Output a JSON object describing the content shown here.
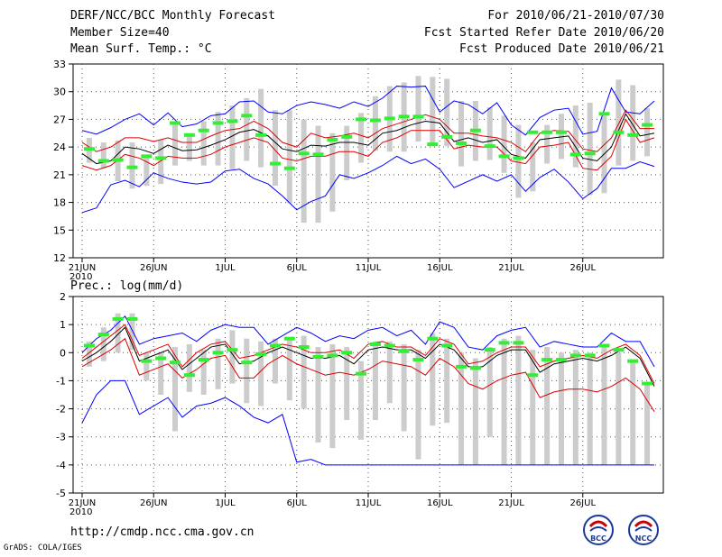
{
  "header": {
    "title": "DERF/NCC/BCC Monthly Forecast",
    "member_size": "Member Size=40",
    "forecast_range": "For 2010/06/21-2010/07/30",
    "started_date": "Fcst Started Refer Date 2010/06/20",
    "produced_date": "Fcst Produced Date 2010/06/21"
  },
  "footer": {
    "url": "http://cmdp.ncc.cma.gov.cn",
    "credit": "GrADS: COLA/IGES",
    "logo1": "BCC",
    "logo2": "NCC"
  },
  "colors": {
    "max": "#0000ff",
    "pct": "#dd0000",
    "mean": "#000000",
    "obs": "#33ee33",
    "box": "#cccccc"
  },
  "chart_data": [
    {
      "type": "line",
      "label": "Mean Surf. Temp.: °C",
      "x_days": 40,
      "ylim": [
        12,
        33
      ],
      "yticks": [
        12,
        15,
        18,
        21,
        24,
        27,
        30,
        33
      ],
      "xticks": [
        {
          "day": 1,
          "label": "21JUN"
        },
        {
          "day": 6,
          "label": "26JUN"
        },
        {
          "day": 11,
          "label": "1JUL"
        },
        {
          "day": 16,
          "label": "6JUL"
        },
        {
          "day": 21,
          "label": "11JUL"
        },
        {
          "day": 26,
          "label": "16JUL"
        },
        {
          "day": 31,
          "label": "21JUL"
        },
        {
          "day": 36,
          "label": "26JUL"
        }
      ],
      "year_label": "2010",
      "series": [
        {
          "name": "max",
          "values": [
            25.8,
            25.4,
            26.1,
            27.0,
            27.6,
            26.4,
            27.7,
            26.2,
            26.5,
            27.4,
            27.6,
            28.9,
            29.0,
            27.8,
            27.6,
            28.5,
            28.9,
            28.6,
            28.2,
            28.9,
            28.4,
            29.3,
            30.6,
            30.5,
            30.6,
            27.8,
            29.0,
            28.6,
            27.6,
            28.8,
            26.4,
            25.3,
            27.2,
            28.0,
            28.2,
            25.4,
            25.7,
            30.4,
            27.8,
            27.6,
            29.0
          ]
        },
        {
          "name": "p90",
          "values": [
            24.5,
            23.5,
            24.0,
            25.0,
            25.0,
            24.6,
            25.0,
            24.5,
            24.5,
            25.2,
            25.8,
            26.0,
            26.8,
            26.0,
            24.5,
            24.0,
            25.5,
            25.0,
            25.2,
            25.5,
            25.0,
            26.0,
            26.5,
            27.0,
            27.5,
            27.0,
            25.5,
            25.5,
            25.2,
            25.0,
            24.5,
            23.5,
            25.5,
            25.8,
            25.7,
            23.8,
            23.5,
            25.0,
            28.0,
            26.0,
            26.0
          ]
        },
        {
          "name": "mean",
          "values": [
            23.3,
            22.2,
            22.5,
            24.0,
            23.8,
            23.3,
            24.2,
            23.6,
            23.7,
            24.2,
            24.8,
            25.6,
            25.9,
            25.2,
            23.8,
            23.5,
            24.2,
            24.1,
            24.5,
            24.5,
            24.2,
            25.5,
            25.8,
            26.4,
            26.8,
            26.6,
            24.6,
            25.0,
            24.5,
            24.8,
            23.2,
            22.8,
            24.8,
            25.0,
            25.2,
            22.8,
            22.5,
            24.0,
            27.6,
            25.2,
            25.5
          ]
        },
        {
          "name": "p10",
          "values": [
            22.0,
            21.5,
            22.0,
            23.2,
            22.8,
            22.0,
            23.0,
            22.8,
            22.8,
            23.2,
            24.0,
            24.5,
            25.0,
            24.5,
            22.8,
            22.5,
            23.0,
            23.0,
            23.5,
            23.5,
            23.0,
            24.5,
            25.0,
            25.8,
            25.8,
            25.8,
            23.8,
            24.2,
            24.0,
            24.0,
            22.5,
            22.2,
            24.0,
            24.2,
            24.5,
            21.7,
            21.5,
            23.0,
            27.0,
            24.5,
            25.0
          ]
        },
        {
          "name": "min",
          "values": [
            16.9,
            17.4,
            19.9,
            20.4,
            19.7,
            21.2,
            20.6,
            20.2,
            20.0,
            20.2,
            21.4,
            21.6,
            20.6,
            20.0,
            18.7,
            17.2,
            18.1,
            18.7,
            21.0,
            20.6,
            21.2,
            22.0,
            23.0,
            22.2,
            22.7,
            21.6,
            19.6,
            20.3,
            21.0,
            20.3,
            21.0,
            19.2,
            20.7,
            21.6,
            20.2,
            18.4,
            19.5,
            21.7,
            21.7,
            22.4,
            21.9
          ]
        }
      ],
      "obs": [
        23.8,
        22.5,
        22.6,
        21.8,
        23.0,
        22.8,
        26.6,
        25.3,
        25.8,
        26.6,
        26.8,
        27.4,
        25.3,
        22.2,
        21.7,
        23.3,
        23.2,
        24.8,
        25.1,
        27.0,
        26.9,
        27.1,
        27.3,
        27.3,
        24.3,
        25.1,
        24.4,
        25.8,
        24.1,
        23.0,
        22.8,
        25.6,
        25.6,
        25.6,
        23.2,
        23.3,
        27.6,
        25.6,
        25.3,
        26.4
      ],
      "boxes": [
        [
          22.3,
          25.0
        ],
        [
          21.7,
          24.5
        ],
        [
          20.3,
          24.7
        ],
        [
          19.5,
          24.5
        ],
        [
          19.8,
          23.0
        ],
        [
          20.0,
          24.8
        ],
        [
          22.0,
          26.4
        ],
        [
          22.5,
          25.5
        ],
        [
          22.0,
          26.8
        ],
        [
          22.0,
          27.8
        ],
        [
          21.6,
          28.5
        ],
        [
          22.5,
          29.3
        ],
        [
          21.8,
          30.3
        ],
        [
          19.8,
          28.0
        ],
        [
          17.9,
          28.0
        ],
        [
          15.8,
          27.0
        ],
        [
          15.8,
          26.3
        ],
        [
          17.0,
          25.5
        ],
        [
          20.4,
          26.3
        ],
        [
          22.3,
          27.7
        ],
        [
          23.6,
          29.5
        ],
        [
          23.5,
          30.6
        ],
        [
          23.5,
          31.0
        ],
        [
          24.6,
          31.7
        ],
        [
          24.5,
          31.6
        ],
        [
          24.1,
          31.4
        ],
        [
          21.9,
          29.0
        ],
        [
          22.5,
          29.0
        ],
        [
          22.6,
          28.3
        ],
        [
          21.2,
          27.4
        ],
        [
          18.5,
          26.4
        ],
        [
          19.2,
          24.5
        ],
        [
          22.2,
          26.4
        ],
        [
          22.7,
          27.6
        ],
        [
          21.8,
          28.5
        ],
        [
          18.8,
          28.8
        ],
        [
          19.0,
          27.4
        ],
        [
          22.0,
          31.3
        ],
        [
          22.5,
          30.7
        ],
        [
          23.0,
          28.2
        ]
      ]
    },
    {
      "type": "line",
      "label": "Prec.: log(mm/d)",
      "x_days": 40,
      "ylim": [
        -5,
        2
      ],
      "yticks": [
        -5,
        -4,
        -3,
        -2,
        -1,
        0,
        1,
        2
      ],
      "xticks": [
        {
          "day": 1,
          "label": "21JUN"
        },
        {
          "day": 6,
          "label": "26JUN"
        },
        {
          "day": 11,
          "label": "1JUL"
        },
        {
          "day": 16,
          "label": "6JUL"
        },
        {
          "day": 21,
          "label": "11JUL"
        },
        {
          "day": 26,
          "label": "16JUL"
        },
        {
          "day": 31,
          "label": "21JUL"
        },
        {
          "day": 36,
          "label": "26JUL"
        }
      ],
      "year_label": "2010",
      "series": [
        {
          "name": "max",
          "values": [
            0.0,
            0.5,
            0.8,
            1.3,
            0.3,
            0.5,
            0.6,
            0.7,
            0.4,
            0.8,
            1.0,
            0.9,
            0.9,
            0.3,
            0.6,
            0.9,
            0.7,
            0.4,
            0.6,
            0.5,
            0.8,
            0.9,
            0.6,
            0.8,
            0.3,
            1.1,
            0.9,
            0.2,
            0.1,
            0.6,
            0.8,
            0.9,
            0.2,
            0.4,
            0.3,
            0.2,
            0.2,
            0.7,
            0.4,
            0.4,
            -0.5
          ]
        },
        {
          "name": "p90",
          "values": [
            -0.2,
            0.2,
            0.6,
            1.0,
            -0.1,
            0.1,
            0.3,
            -0.5,
            0.0,
            0.3,
            0.4,
            -0.2,
            -0.1,
            0.1,
            0.3,
            0.2,
            0.0,
            0.0,
            0.1,
            -0.2,
            0.3,
            0.4,
            0.2,
            0.2,
            -0.1,
            0.5,
            0.3,
            -0.4,
            -0.3,
            0.0,
            0.2,
            0.2,
            -0.5,
            -0.3,
            -0.2,
            -0.1,
            -0.2,
            0.1,
            0.3,
            -0.1,
            -1.1
          ]
        },
        {
          "name": "mean",
          "values": [
            -0.3,
            0.0,
            0.4,
            0.9,
            -0.3,
            -0.1,
            0.1,
            -0.6,
            -0.2,
            0.2,
            0.3,
            -0.4,
            -0.3,
            0.0,
            0.2,
            0.0,
            -0.2,
            -0.2,
            -0.1,
            -0.4,
            0.1,
            0.2,
            0.1,
            0.1,
            -0.2,
            0.3,
            0.1,
            -0.5,
            -0.5,
            -0.1,
            0.1,
            0.1,
            -0.7,
            -0.4,
            -0.3,
            -0.2,
            -0.3,
            -0.1,
            0.2,
            -0.2,
            -1.2
          ]
        },
        {
          "name": "p10",
          "values": [
            -0.5,
            -0.2,
            0.1,
            0.5,
            -0.8,
            -0.6,
            -0.4,
            -0.9,
            -0.6,
            -0.2,
            -0.1,
            -0.9,
            -0.9,
            -0.4,
            -0.1,
            -0.4,
            -0.6,
            -0.8,
            -0.7,
            -0.8,
            -0.6,
            -0.3,
            -0.4,
            -0.5,
            -0.8,
            -0.2,
            -0.5,
            -1.1,
            -1.3,
            -1.0,
            -0.8,
            -0.7,
            -1.6,
            -1.4,
            -1.3,
            -1.3,
            -1.4,
            -1.2,
            -0.9,
            -1.3,
            -2.1
          ]
        },
        {
          "name": "min",
          "values": [
            -2.5,
            -1.5,
            -1.0,
            -1.0,
            -2.2,
            -1.9,
            -1.6,
            -2.3,
            -1.9,
            -1.8,
            -1.6,
            -1.9,
            -2.3,
            -2.5,
            -2.2,
            -3.9,
            -3.8,
            -4.0,
            -4.0,
            -4.0,
            -4.0,
            -4.0,
            -4.0,
            -4.0,
            -4.0,
            -4.0,
            -4.0,
            -4.0,
            -4.0,
            -4.0,
            -4.0,
            -4.0,
            -4.0,
            -4.0,
            -4.0,
            -4.0,
            -4.0,
            -4.0,
            -4.0,
            -4.0,
            -4.0
          ]
        }
      ],
      "obs": [
        0.25,
        0.65,
        1.2,
        1.2,
        -0.3,
        -0.2,
        -0.35,
        -0.8,
        -0.25,
        0.0,
        0.1,
        -0.35,
        -0.05,
        0.25,
        0.5,
        0.2,
        -0.15,
        -0.1,
        0.0,
        -0.75,
        0.3,
        0.25,
        0.05,
        -0.25,
        0.5,
        0.25,
        -0.5,
        -0.55,
        0.1,
        0.35,
        0.35,
        -0.8,
        -0.25,
        -0.25,
        -0.1,
        -0.1,
        0.25,
        0.1,
        -0.3,
        -1.1
      ],
      "boxes": [
        [
          -0.5,
          0.4
        ],
        [
          -0.3,
          0.9
        ],
        [
          0.0,
          1.4
        ],
        [
          0.1,
          1.4
        ],
        [
          -1.0,
          0.0
        ],
        [
          -1.5,
          0.0
        ],
        [
          -2.8,
          0.2
        ],
        [
          -1.4,
          0.3
        ],
        [
          -1.5,
          0.1
        ],
        [
          -1.3,
          0.5
        ],
        [
          -1.1,
          0.8
        ],
        [
          -1.8,
          0.5
        ],
        [
          -1.9,
          0.4
        ],
        [
          -1.1,
          0.5
        ],
        [
          -1.7,
          0.5
        ],
        [
          -2.0,
          0.6
        ],
        [
          -3.2,
          0.2
        ],
        [
          -3.4,
          0.3
        ],
        [
          -2.4,
          0.2
        ],
        [
          -3.1,
          -0.3
        ],
        [
          -2.4,
          0.4
        ],
        [
          -1.8,
          0.4
        ],
        [
          -2.8,
          0.3
        ],
        [
          -3.8,
          0.1
        ],
        [
          -2.6,
          0.7
        ],
        [
          -2.5,
          0.5
        ],
        [
          -4.0,
          0.0
        ],
        [
          -4.0,
          -0.2
        ],
        [
          -3.0,
          0.2
        ],
        [
          -4.0,
          0.5
        ],
        [
          -4.0,
          0.6
        ],
        [
          -4.0,
          0.1
        ],
        [
          -4.0,
          0.2
        ],
        [
          -4.0,
          0.0
        ],
        [
          -4.0,
          0.1
        ],
        [
          -4.0,
          0.0
        ],
        [
          -4.0,
          0.3
        ],
        [
          -4.0,
          0.0
        ],
        [
          -4.0,
          -0.3
        ],
        [
          -4.0,
          -1.1
        ]
      ]
    }
  ]
}
